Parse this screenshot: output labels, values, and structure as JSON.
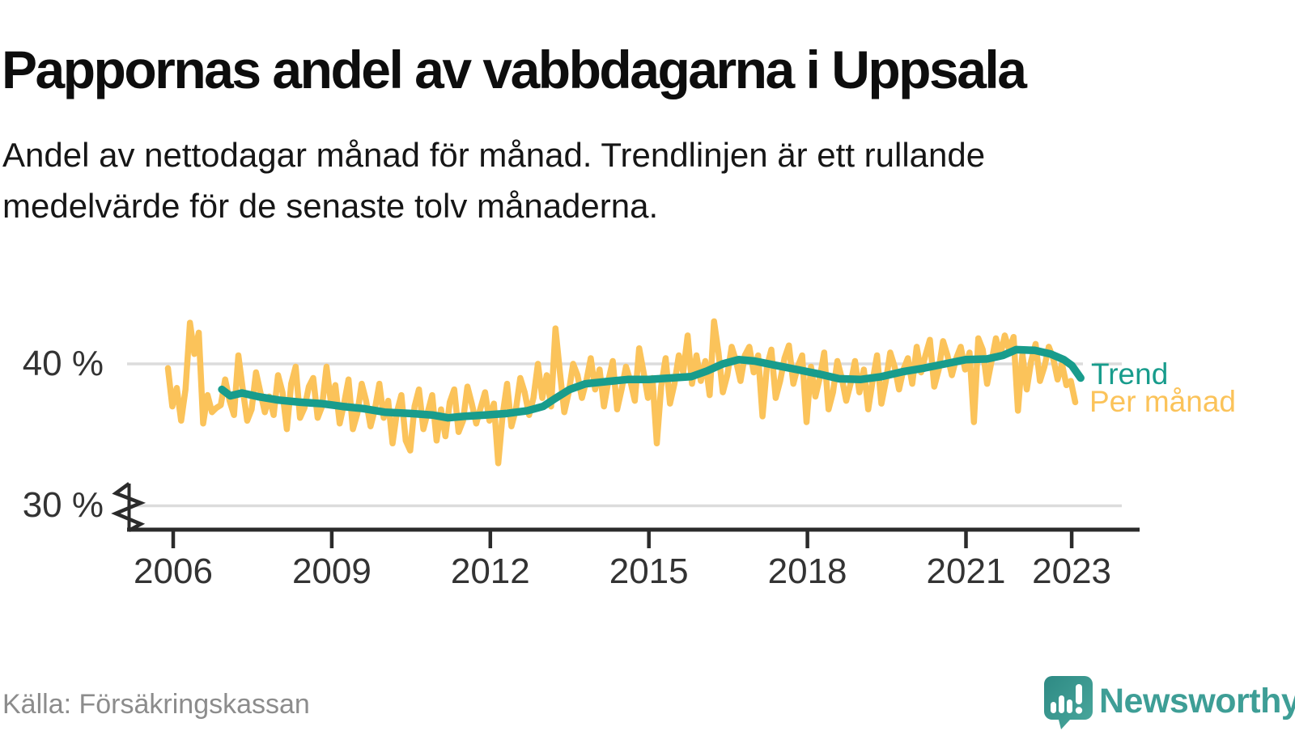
{
  "header": {
    "title": "Pappornas andel av vabbdagarna i Uppsala",
    "subtitle_line1": "Andel av nettodagar månad för månad. Trendlinjen är ett rullande",
    "subtitle_line2": "medelvärde för de senaste tolv månaderna."
  },
  "legend": {
    "trend_label": "Trend",
    "monthly_label": "Per månad"
  },
  "footer": {
    "source": "Källa: Försäkringskassan",
    "brand_name": "Newsworthy"
  },
  "colors": {
    "trend": "#189c8c",
    "monthly": "#fbc35a",
    "grid": "#dcdcdc",
    "axis": "#2b2b2b",
    "tick_text": "#333333",
    "source_text": "#8c8c8c",
    "brand_teal": "#3e9e96"
  },
  "chart_data": {
    "type": "line",
    "title": "Pappornas andel av vabbdagarna i Uppsala",
    "unit": "%",
    "grid": "horizontal-only",
    "legend_position": "right-of-line-ends",
    "y_axis": {
      "ticks": [
        30,
        40
      ],
      "tick_labels": [
        "30 %",
        "40 %"
      ],
      "axis_break_below_30": true
    },
    "x_axis": {
      "ticks": [
        2006,
        2009,
        2012,
        2015,
        2018,
        2021,
        2023
      ]
    },
    "series": [
      {
        "name": "Per månad",
        "kind": "monthly",
        "start_year": 2006,
        "start_month": 1,
        "end_year": 2023,
        "end_month": 3,
        "values": [
          39.7,
          37.0,
          38.3,
          36.0,
          38.2,
          42.9,
          40.7,
          42.2,
          35.8,
          37.8,
          36.6,
          36.9,
          37.1,
          38.9,
          37.4,
          36.4,
          40.6,
          38.2,
          36.0,
          36.8,
          39.4,
          38.0,
          36.6,
          37.7,
          36.4,
          39.2,
          38.0,
          35.4,
          38.6,
          39.8,
          36.2,
          36.9,
          38.4,
          39.0,
          36.2,
          37.0,
          39.8,
          37.3,
          38.5,
          35.8,
          37.2,
          38.9,
          35.4,
          36.5,
          38.6,
          37.4,
          35.6,
          36.8,
          38.6,
          36.2,
          37.4,
          34.4,
          36.6,
          37.8,
          34.6,
          33.9,
          37.0,
          38.2,
          35.4,
          36.6,
          37.8,
          34.6,
          36.8,
          34.9,
          37.3,
          38.2,
          35.2,
          36.0,
          38.4,
          37.2,
          35.8,
          36.9,
          38.0,
          36.0,
          37.2,
          33.0,
          36.4,
          38.6,
          35.6,
          36.8,
          39.0,
          38.0,
          36.4,
          37.6,
          40.0,
          37.6,
          39.2,
          37.0,
          42.5,
          39.4,
          36.6,
          38.0,
          40.0,
          39.2,
          37.6,
          38.8,
          40.4,
          38.2,
          39.6,
          37.0,
          38.8,
          40.2,
          36.8,
          38.2,
          39.8,
          38.8,
          37.4,
          41.1,
          39.4,
          37.6,
          39.0,
          34.4,
          38.4,
          40.4,
          37.2,
          38.6,
          40.6,
          39.4,
          42.0,
          38.6,
          40.6,
          38.8,
          40.2,
          37.8,
          43.0,
          40.8,
          38.0,
          39.2,
          41.2,
          40.2,
          38.8,
          40.6,
          41.2,
          39.4,
          40.6,
          36.3,
          39.8,
          41.0,
          37.6,
          38.8,
          40.4,
          41.3,
          38.6,
          39.8,
          40.6,
          35.9,
          39.8,
          37.7,
          39.0,
          40.8,
          36.8,
          38.0,
          40.2,
          39.0,
          37.4,
          38.6,
          40.2,
          38.0,
          39.6,
          36.8,
          38.8,
          40.6,
          37.2,
          38.8,
          40.8,
          39.8,
          38.2,
          39.6,
          40.4,
          38.6,
          41.2,
          39.4,
          40.6,
          41.7,
          38.4,
          39.6,
          41.6,
          40.6,
          39.2,
          40.4,
          41.2,
          39.6,
          40.8,
          35.9,
          41.8,
          41.0,
          38.6,
          40.2,
          41.8,
          40.6,
          42.0,
          41.0,
          41.9,
          36.7,
          40.7,
          38.2,
          40.2,
          41.4,
          38.8,
          39.8,
          41.2,
          40.4,
          38.9,
          40.0,
          38.5,
          38.8,
          37.3
        ]
      },
      {
        "name": "Trend",
        "kind": "rolling-12-month-mean",
        "points": [
          [
            2006.92,
            38.2
          ],
          [
            2007.08,
            37.75
          ],
          [
            2007.3,
            37.95
          ],
          [
            2007.6,
            37.7
          ],
          [
            2008.0,
            37.45
          ],
          [
            2008.4,
            37.3
          ],
          [
            2008.8,
            37.2
          ],
          [
            2009.2,
            37.0
          ],
          [
            2009.6,
            36.85
          ],
          [
            2010.0,
            36.6
          ],
          [
            2010.5,
            36.5
          ],
          [
            2010.9,
            36.4
          ],
          [
            2011.2,
            36.2
          ],
          [
            2011.5,
            36.3
          ],
          [
            2011.9,
            36.4
          ],
          [
            2012.3,
            36.5
          ],
          [
            2012.7,
            36.7
          ],
          [
            2013.0,
            37.0
          ],
          [
            2013.2,
            37.5
          ],
          [
            2013.5,
            38.2
          ],
          [
            2013.8,
            38.6
          ],
          [
            2014.2,
            38.75
          ],
          [
            2014.6,
            38.9
          ],
          [
            2015.0,
            38.9
          ],
          [
            2015.4,
            39.0
          ],
          [
            2015.8,
            39.1
          ],
          [
            2016.1,
            39.5
          ],
          [
            2016.4,
            40.0
          ],
          [
            2016.7,
            40.3
          ],
          [
            2017.0,
            40.2
          ],
          [
            2017.4,
            39.9
          ],
          [
            2017.8,
            39.6
          ],
          [
            2018.2,
            39.3
          ],
          [
            2018.6,
            38.95
          ],
          [
            2019.0,
            38.9
          ],
          [
            2019.4,
            39.1
          ],
          [
            2019.8,
            39.45
          ],
          [
            2020.2,
            39.7
          ],
          [
            2020.6,
            40.0
          ],
          [
            2021.0,
            40.3
          ],
          [
            2021.4,
            40.35
          ],
          [
            2021.7,
            40.6
          ],
          [
            2021.95,
            41.0
          ],
          [
            2022.3,
            40.95
          ],
          [
            2022.6,
            40.7
          ],
          [
            2022.85,
            40.3
          ],
          [
            2023.0,
            39.9
          ],
          [
            2023.17,
            39.0
          ]
        ]
      }
    ]
  }
}
